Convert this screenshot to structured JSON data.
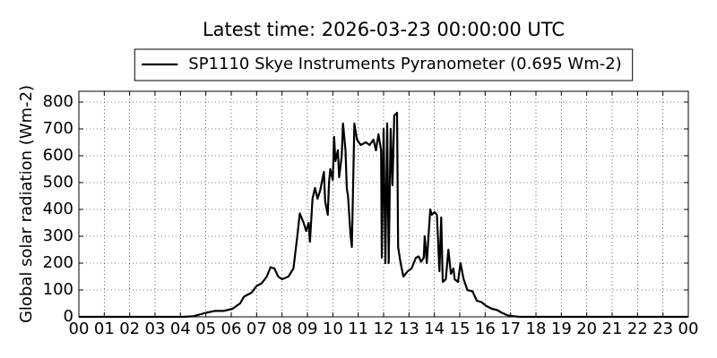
{
  "chart_data": {
    "type": "line",
    "title": "Latest time: 2026-03-23 00:00:00 UTC",
    "y_label": "Global solar radiation (Wm-2)",
    "x": [
      0,
      4.13,
      4.5,
      5.0,
      5.35,
      5.7,
      6.05,
      6.35,
      6.5,
      6.8,
      7.0,
      7.2,
      7.4,
      7.55,
      7.7,
      7.85,
      8.0,
      8.25,
      8.45,
      8.6,
      8.7,
      8.85,
      8.95,
      9.05,
      9.1,
      9.2,
      9.3,
      9.4,
      9.5,
      9.65,
      9.7,
      9.8,
      9.85,
      9.9,
      10.0,
      10.05,
      10.1,
      10.2,
      10.25,
      10.35,
      10.4,
      10.5,
      10.55,
      10.6,
      10.7,
      10.75,
      10.85,
      10.95,
      11.1,
      11.3,
      11.45,
      11.6,
      11.7,
      11.8,
      11.9,
      11.93,
      12.0,
      12.07,
      12.14,
      12.2,
      12.28,
      12.35,
      12.42,
      12.53,
      12.57,
      12.67,
      12.78,
      12.95,
      13.1,
      13.27,
      13.38,
      13.48,
      13.58,
      13.62,
      13.7,
      13.77,
      13.84,
      13.9,
      14.0,
      14.1,
      14.2,
      14.27,
      14.33,
      14.45,
      14.55,
      14.65,
      14.75,
      14.8,
      14.93,
      15.03,
      15.15,
      15.3,
      15.5,
      15.67,
      15.85,
      16.05,
      16.27,
      16.48,
      16.66,
      16.9,
      17.12,
      17.37,
      24
    ],
    "series": [
      {
        "name": "SP1110 Skye Instruments Pyranometer (0.695 Wm-2)",
        "color": "#000000",
        "values": [
          0,
          0,
          2,
          15,
          22,
          22,
          30,
          50,
          75,
          90,
          115,
          125,
          150,
          185,
          180,
          150,
          140,
          150,
          180,
          300,
          385,
          350,
          320,
          350,
          280,
          440,
          480,
          440,
          470,
          540,
          430,
          380,
          500,
          550,
          510,
          670,
          580,
          620,
          520,
          600,
          720,
          620,
          480,
          450,
          300,
          260,
          720,
          660,
          640,
          650,
          640,
          660,
          620,
          680,
          620,
          220,
          700,
          200,
          720,
          200,
          700,
          490,
          750,
          760,
          260,
          200,
          150,
          170,
          180,
          220,
          225,
          205,
          220,
          300,
          200,
          300,
          400,
          380,
          390,
          380,
          170,
          370,
          130,
          140,
          250,
          160,
          180,
          140,
          130,
          200,
          140,
          100,
          95,
          60,
          55,
          40,
          30,
          25,
          15,
          5,
          2,
          0,
          0
        ]
      }
    ],
    "xlim": [
      0,
      24
    ],
    "ylim": [
      0,
      840
    ],
    "xticks": [
      {
        "value": 0,
        "label": "00"
      },
      {
        "value": 1,
        "label": "01"
      },
      {
        "value": 2,
        "label": "02"
      },
      {
        "value": 3,
        "label": "03"
      },
      {
        "value": 4,
        "label": "04"
      },
      {
        "value": 5,
        "label": "05"
      },
      {
        "value": 6,
        "label": "06"
      },
      {
        "value": 7,
        "label": "07"
      },
      {
        "value": 8,
        "label": "08"
      },
      {
        "value": 9,
        "label": "09"
      },
      {
        "value": 10,
        "label": "10"
      },
      {
        "value": 11,
        "label": "11"
      },
      {
        "value": 12,
        "label": "12"
      },
      {
        "value": 13,
        "label": "13"
      },
      {
        "value": 14,
        "label": "14"
      },
      {
        "value": 15,
        "label": "15"
      },
      {
        "value": 16,
        "label": "16"
      },
      {
        "value": 17,
        "label": "17"
      },
      {
        "value": 18,
        "label": "18"
      },
      {
        "value": 19,
        "label": "19"
      },
      {
        "value": 20,
        "label": "20"
      },
      {
        "value": 21,
        "label": "21"
      },
      {
        "value": 22,
        "label": "22"
      },
      {
        "value": 23,
        "label": "23"
      },
      {
        "value": 24,
        "label": "00"
      }
    ],
    "yticks": [
      0,
      100,
      200,
      300,
      400,
      500,
      600,
      700,
      800
    ],
    "grid": true,
    "legend": "top"
  }
}
